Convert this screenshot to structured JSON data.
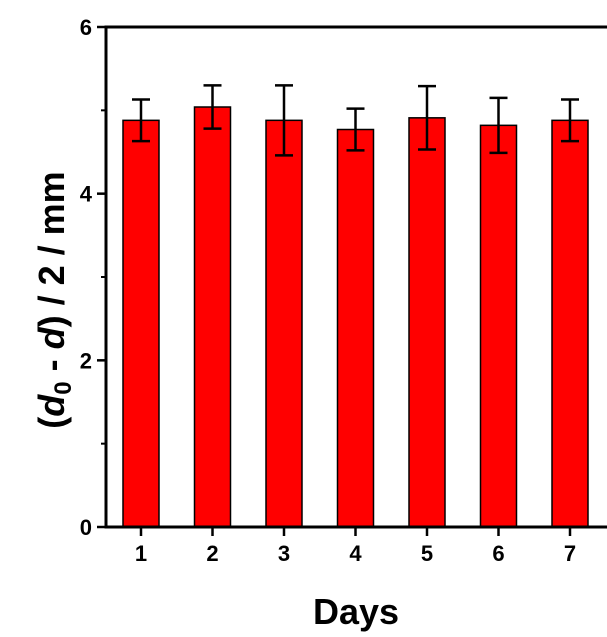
{
  "chart_data": {
    "type": "bar",
    "title": "",
    "xlabel": "Days",
    "ylabel": {
      "parts": [
        {
          "text": "(",
          "style": "normal"
        },
        {
          "text": "d",
          "style": "italic"
        },
        {
          "text": "0",
          "style": "sub"
        },
        {
          "text": " - ",
          "style": "normal"
        },
        {
          "text": "d",
          "style": "italic"
        },
        {
          "text": ") / 2 / mm",
          "style": "normal"
        }
      ]
    },
    "categories": [
      "1",
      "2",
      "3",
      "4",
      "5",
      "6",
      "7"
    ],
    "values": [
      4.88,
      5.04,
      4.88,
      4.77,
      4.91,
      4.82,
      4.88
    ],
    "errors": [
      0.25,
      0.26,
      0.42,
      0.25,
      0.38,
      0.33,
      0.25
    ],
    "ylim": [
      0,
      6
    ],
    "yticks": [
      0,
      2,
      4,
      6
    ],
    "bar_color": "#ff0000",
    "grid": false
  }
}
